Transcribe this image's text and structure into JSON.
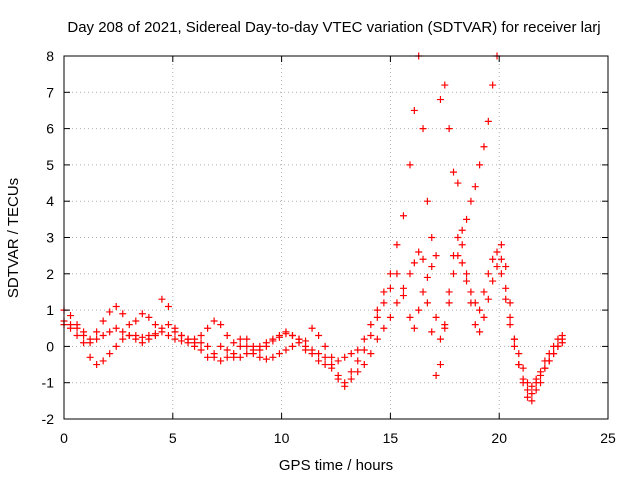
{
  "chart_data": {
    "type": "scatter",
    "title": "Day 208 of 2021, Sidereal Day-to-day VTEC variation (SDTVAR) for receiver larj",
    "xlabel": "GPS time / hours",
    "ylabel": "SDTVAR / TECUs",
    "xlim": [
      0,
      25
    ],
    "ylim": [
      -2,
      8
    ],
    "xticks": [
      0,
      5,
      10,
      15,
      20,
      25
    ],
    "yticks": [
      -2,
      -1,
      0,
      1,
      2,
      3,
      4,
      5,
      6,
      7,
      8
    ],
    "grid": true,
    "marker": "+",
    "series": [
      {
        "name": "SDTVAR",
        "color": "#ff0000",
        "x": [
          0.0,
          0.3,
          0.6,
          0.9,
          1.2,
          1.5,
          1.8,
          2.1,
          2.4,
          2.7,
          3.0,
          3.3,
          3.6,
          3.9,
          4.2,
          4.5,
          4.8,
          5.1,
          5.4,
          5.7,
          6.0,
          6.3,
          6.6,
          6.9,
          7.2,
          7.5,
          7.8,
          8.1,
          8.4,
          8.7,
          9.0,
          9.3,
          9.6,
          9.9,
          10.2,
          10.5,
          10.8,
          11.1,
          11.4,
          11.7,
          12.0,
          12.3,
          12.6,
          12.9,
          13.2,
          13.5,
          13.8,
          14.1,
          14.4,
          14.7,
          15.0,
          15.3,
          15.6,
          15.9,
          16.1,
          16.3,
          16.5,
          16.7,
          16.9,
          17.1,
          17.3,
          17.5,
          17.7,
          17.9,
          18.1,
          18.3,
          18.5,
          18.7,
          18.9,
          19.1,
          19.3,
          19.5,
          19.7,
          19.9,
          20.1,
          20.3,
          20.5,
          20.7,
          20.9,
          21.1,
          21.3,
          21.5,
          21.7,
          21.9,
          22.1,
          22.3,
          22.5,
          22.7,
          22.9
        ],
        "y": [
          1.0,
          0.85,
          0.6,
          0.3,
          0.1,
          0.4,
          0.7,
          0.95,
          1.1,
          0.9,
          0.6,
          0.7,
          0.9,
          0.8,
          0.6,
          1.3,
          1.1,
          0.5,
          0.3,
          0.2,
          0.1,
          0.3,
          0.5,
          0.7,
          0.6,
          0.3,
          0.1,
          0.2,
          0.0,
          -0.2,
          -0.1,
          0.0,
          0.15,
          0.25,
          0.35,
          0.3,
          0.2,
          0.15,
          0.5,
          0.3,
          0.0,
          -0.3,
          -0.4,
          -0.3,
          -0.2,
          -0.1,
          0.2,
          0.6,
          1.0,
          1.5,
          2.0,
          2.8,
          3.6,
          5.0,
          6.5,
          8.0,
          6.0,
          4.0,
          3.0,
          2.5,
          6.8,
          7.2,
          6.0,
          4.8,
          4.5,
          3.2,
          3.5,
          4.0,
          4.4,
          5.0,
          5.5,
          6.2,
          7.2,
          8.0,
          2.8,
          2.2,
          1.2,
          0.2,
          -0.5,
          -1.0,
          -1.4,
          -1.5,
          -1.2,
          -1.0,
          -0.6,
          -0.4,
          -0.2,
          0.0,
          0.2
        ]
      },
      {
        "name": "SDTVAR",
        "color": "#ff0000",
        "x": [
          0.0,
          0.3,
          0.6,
          0.9,
          1.2,
          1.5,
          1.8,
          2.1,
          2.4,
          2.7,
          3.0,
          3.3,
          3.6,
          3.9,
          4.2,
          4.5,
          4.8,
          5.1,
          5.4,
          5.7,
          6.0,
          6.3,
          6.6,
          6.9,
          7.2,
          7.5,
          7.8,
          8.1,
          8.4,
          8.7,
          9.0,
          9.3,
          9.6,
          9.9,
          10.2,
          10.5,
          10.8,
          11.1,
          11.4,
          11.7,
          12.0,
          12.3,
          12.6,
          12.9,
          13.2,
          13.5,
          13.8,
          14.1,
          14.4,
          14.7,
          15.0,
          15.3,
          15.6,
          15.9,
          16.1,
          16.3,
          16.5,
          16.7,
          16.9,
          17.1,
          17.3,
          17.5,
          17.7,
          17.9,
          18.1,
          18.3,
          18.5,
          18.7,
          18.9,
          19.1,
          19.3,
          19.5,
          19.7,
          19.9,
          20.1,
          20.3,
          20.5,
          20.7,
          20.9,
          21.1,
          21.3,
          21.5,
          21.7,
          21.9,
          22.1,
          22.3,
          22.5,
          22.7,
          22.9
        ],
        "y": [
          0.6,
          0.5,
          0.3,
          0.1,
          -0.3,
          -0.5,
          -0.4,
          -0.2,
          0.0,
          0.2,
          0.3,
          0.2,
          0.1,
          0.2,
          0.3,
          0.5,
          0.6,
          0.4,
          0.3,
          0.2,
          0.2,
          0.1,
          0.0,
          -0.3,
          -0.4,
          -0.3,
          -0.2,
          0.0,
          0.2,
          0.0,
          -0.3,
          -0.35,
          -0.3,
          -0.2,
          -0.1,
          0.0,
          0.1,
          0.0,
          -0.1,
          -0.2,
          -0.3,
          -0.5,
          -0.8,
          -1.0,
          -0.9,
          -0.7,
          -0.5,
          -0.2,
          0.2,
          0.5,
          0.8,
          1.2,
          1.6,
          2.0,
          2.3,
          2.6,
          2.4,
          1.2,
          0.4,
          -0.8,
          -0.5,
          0.5,
          1.5,
          2.5,
          3.0,
          2.8,
          2.0,
          1.5,
          1.2,
          1.0,
          1.5,
          2.0,
          2.4,
          2.6,
          2.4,
          1.6,
          0.8,
          0.0,
          -0.5,
          -0.9,
          -1.2,
          -1.3,
          -1.0,
          -0.7,
          -0.4,
          -0.2,
          0.0,
          0.2,
          0.3
        ]
      },
      {
        "name": "SDTVAR",
        "color": "#ff0000",
        "x": [
          0.0,
          0.3,
          0.6,
          0.9,
          1.2,
          1.5,
          1.8,
          2.1,
          2.4,
          2.7,
          3.0,
          3.3,
          3.6,
          3.9,
          4.2,
          4.5,
          4.8,
          5.1,
          5.4,
          5.7,
          6.0,
          6.3,
          6.6,
          6.9,
          7.2,
          7.5,
          7.8,
          8.1,
          8.4,
          8.7,
          9.0,
          9.3,
          9.6,
          9.9,
          10.2,
          10.5,
          10.8,
          11.1,
          11.4,
          11.7,
          12.0,
          12.3,
          12.6,
          12.9,
          13.2,
          13.5,
          13.8,
          14.1,
          14.4,
          14.7,
          15.0,
          15.3,
          15.6,
          15.9,
          16.1,
          16.3,
          16.5,
          16.7,
          16.9,
          17.1,
          17.3,
          17.5,
          17.7,
          17.9,
          18.1,
          18.3,
          18.5,
          18.7,
          18.9,
          19.1,
          19.3,
          19.5,
          19.7,
          19.9,
          20.1,
          20.3,
          20.5,
          20.7,
          20.9,
          21.1,
          21.3,
          21.5,
          21.7,
          21.9,
          22.1,
          22.3,
          22.5,
          22.7,
          22.9
        ],
        "y": [
          0.7,
          0.6,
          0.5,
          0.4,
          0.2,
          0.2,
          0.3,
          0.4,
          0.5,
          0.4,
          0.3,
          0.3,
          0.25,
          0.3,
          0.35,
          0.4,
          0.3,
          0.2,
          0.15,
          0.1,
          0.0,
          -0.1,
          -0.3,
          -0.2,
          0.0,
          -0.1,
          -0.3,
          -0.3,
          -0.2,
          -0.1,
          0.0,
          0.1,
          0.2,
          0.3,
          0.4,
          0.3,
          0.2,
          -0.1,
          -0.2,
          -0.4,
          -0.5,
          -0.6,
          -0.9,
          -1.1,
          -0.7,
          -0.4,
          -0.1,
          0.3,
          0.8,
          1.2,
          1.6,
          2.0,
          1.4,
          0.8,
          0.5,
          1.0,
          1.5,
          1.9,
          2.2,
          0.8,
          0.2,
          0.6,
          1.2,
          2.0,
          2.5,
          2.3,
          1.8,
          1.2,
          0.6,
          0.4,
          0.8,
          1.3,
          1.8,
          2.2,
          2.0,
          1.3,
          0.6,
          0.2,
          -0.2,
          -0.6,
          -1.0,
          -1.1,
          -0.9,
          -0.8,
          -0.6,
          -0.4,
          -0.2,
          0.0,
          0.1
        ]
      }
    ]
  }
}
